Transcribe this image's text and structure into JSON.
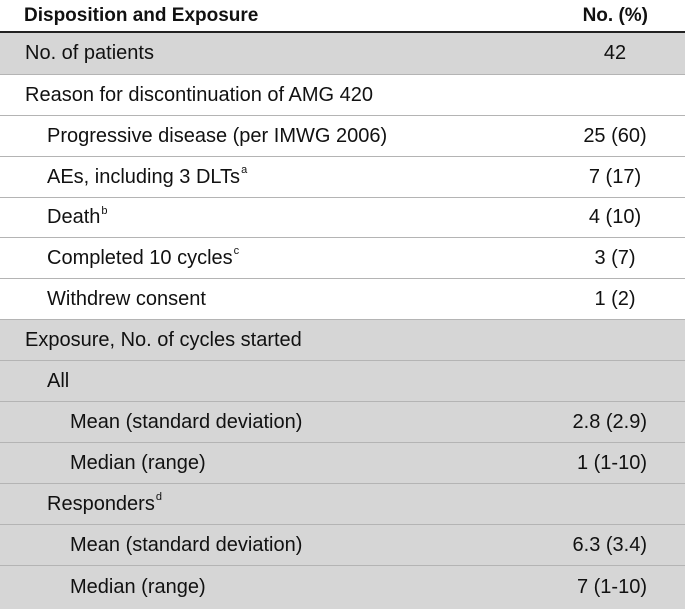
{
  "header": {
    "col1": "Disposition and Exposure",
    "col2": "No. (%)"
  },
  "rows": [
    {
      "label": "No. of patients",
      "sup": "",
      "value": "42"
    },
    {
      "label": "Reason for discontinuation of AMG 420",
      "sup": "",
      "value": ""
    },
    {
      "label": "Progressive disease (per IMWG 2006)",
      "sup": "",
      "value": "25 (60)"
    },
    {
      "label": "AEs, including 3 DLTs",
      "sup": "a",
      "value": "7 (17)"
    },
    {
      "label": "Death",
      "sup": "b",
      "value": "4 (10)"
    },
    {
      "label": "Completed 10 cycles",
      "sup": "c",
      "value": "3 (7)"
    },
    {
      "label": "Withdrew consent",
      "sup": "",
      "value": "1 (2)"
    },
    {
      "label": "Exposure, No. of cycles started",
      "sup": "",
      "value": ""
    },
    {
      "label": "All",
      "sup": "",
      "value": ""
    },
    {
      "label": "Mean (standard deviation)",
      "sup": "",
      "value": "2.8 (2.9)"
    },
    {
      "label": "Median (range)",
      "sup": "",
      "value": "1 (1-10)"
    },
    {
      "label": "Responders",
      "sup": "d",
      "value": ""
    },
    {
      "label": "Mean (standard deviation)",
      "sup": "",
      "value": "6.3 (3.4)"
    },
    {
      "label": "Median (range)",
      "sup": "",
      "value": "7 (1-10)"
    }
  ]
}
